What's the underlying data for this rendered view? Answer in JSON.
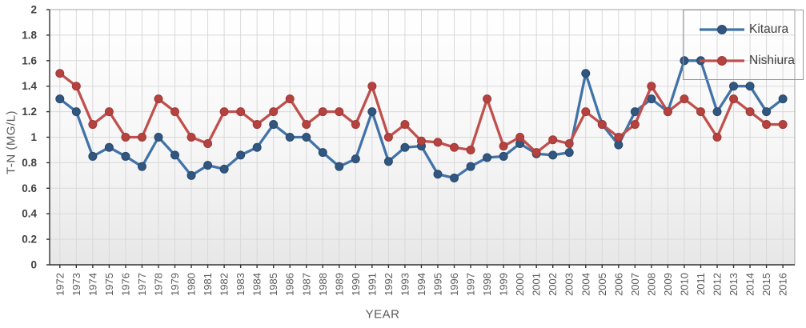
{
  "chart_data": {
    "type": "line",
    "title": "",
    "xlabel": "YEAR",
    "ylabel": "T-N (MG/L)",
    "ylim": [
      0,
      2
    ],
    "ytick_step": 0.2,
    "ytick_labels": [
      "0",
      "0.2",
      "0.4",
      "0.6",
      "0.8",
      "1",
      "1.2",
      "1.4",
      "1.6",
      "1.8",
      "2"
    ],
    "grid": true,
    "legend_position": "top-right",
    "categories": [
      "1972",
      "1973",
      "1974",
      "1975",
      "1976",
      "1977",
      "1978",
      "1979",
      "1980",
      "1981",
      "1982",
      "1983",
      "1984",
      "1985",
      "1986",
      "1987",
      "1988",
      "1989",
      "1990",
      "1991",
      "1992",
      "1993",
      "1994",
      "1995",
      "1996",
      "1997",
      "1998",
      "1999",
      "2000",
      "2001",
      "2002",
      "2003",
      "2004",
      "2005",
      "2006",
      "2007",
      "2008",
      "2009",
      "2010",
      "2011",
      "2012",
      "2013",
      "2014",
      "2015",
      "2016"
    ],
    "series": [
      {
        "name": "Kitaura",
        "line_color": "#4173A8",
        "marker_color": "#31567F",
        "marker_edge_color": "#29496C",
        "values": [
          1.3,
          1.2,
          0.85,
          0.92,
          0.85,
          0.77,
          1.0,
          0.86,
          0.7,
          0.78,
          0.75,
          0.86,
          0.92,
          1.1,
          1.0,
          1.0,
          0.88,
          0.77,
          0.83,
          1.2,
          0.81,
          0.92,
          0.93,
          0.71,
          0.68,
          0.77,
          0.84,
          0.85,
          0.95,
          0.87,
          0.86,
          0.88,
          1.5,
          1.1,
          0.94,
          1.2,
          1.3,
          1.2,
          1.6,
          1.6,
          1.2,
          1.4,
          1.4,
          1.2,
          1.3
        ]
      },
      {
        "name": "Nishiura",
        "line_color": "#C0504D",
        "marker_color": "#B5423F",
        "marker_edge_color": "#9E3A37",
        "values": [
          1.5,
          1.4,
          1.1,
          1.2,
          1.0,
          1.0,
          1.3,
          1.2,
          1.0,
          0.95,
          1.2,
          1.2,
          1.1,
          1.2,
          1.3,
          1.1,
          1.2,
          1.2,
          1.1,
          1.4,
          1.0,
          1.1,
          0.97,
          0.96,
          0.92,
          0.9,
          1.3,
          0.93,
          1.0,
          0.88,
          0.98,
          0.95,
          1.2,
          1.1,
          1.0,
          1.1,
          1.4,
          1.2,
          1.3,
          1.2,
          1.0,
          1.3,
          1.2,
          1.1,
          1.1
        ]
      }
    ],
    "style": {
      "gridline_color": "#d9d9d9",
      "axis_color": "#333333",
      "border_color": "#a6a6a6",
      "plot_bg_top": "#ffffff",
      "plot_bg_bottom": "#e7e7e7"
    }
  },
  "legend": {
    "items": [
      {
        "label": "Kitaura"
      },
      {
        "label": "Nishiura"
      }
    ]
  }
}
